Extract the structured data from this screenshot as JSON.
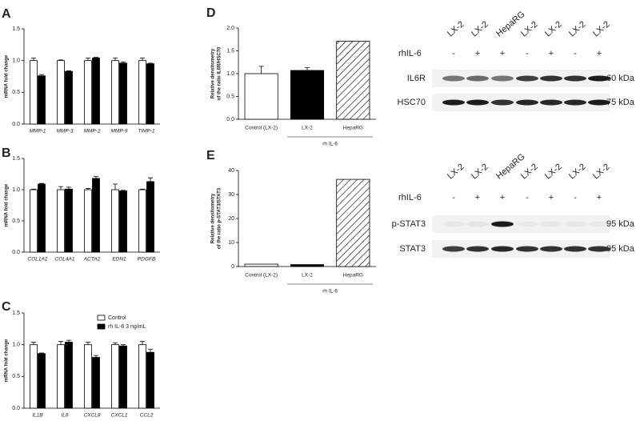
{
  "chart_data": [
    {
      "type": "bar",
      "label": "A",
      "ylabel": [
        "mRNA fold change"
      ],
      "categories": [
        "MMP-1",
        "MMP-3",
        "MMP-2",
        "MMP-9",
        "TIMP-1"
      ],
      "series": [
        {
          "name": "Control",
          "color": "#ffffff",
          "values": [
            1.0,
            1.0,
            1.0,
            1.0,
            1.0
          ],
          "errors": [
            0.04,
            0.01,
            0.04,
            0.04,
            0.04
          ]
        },
        {
          "name": "rh IL-6 3 ng/mL",
          "color": "#000000",
          "values": [
            0.76,
            0.83,
            1.04,
            0.96,
            0.95
          ],
          "errors": [
            0.02,
            0.01,
            0.01,
            0.02,
            0.01
          ]
        }
      ],
      "ylim": [
        0,
        1.5
      ],
      "yticks": [
        {
          "value": 0,
          "label": "0.0"
        },
        0.5,
        {
          "value": 1,
          "label": "1.0"
        },
        1.5
      ]
    },
    {
      "type": "bar",
      "label": "B",
      "ylabel": [
        "mRNA fold change"
      ],
      "categories": [
        "COL1A1",
        "COL4A1",
        "ACTA2",
        "EDN1",
        "PDGFB"
      ],
      "series": [
        {
          "name": "Control",
          "color": "#ffffff",
          "values": [
            1.0,
            1.0,
            1.0,
            1.0,
            1.0
          ],
          "errors": [
            0.01,
            0.05,
            0.02,
            0.09,
            0.01
          ]
        },
        {
          "name": "rh IL-6 3 ng/mL",
          "color": "#000000",
          "values": [
            1.09,
            1.01,
            1.18,
            0.98,
            1.13
          ],
          "errors": [
            0.01,
            0.03,
            0.03,
            0.01,
            0.06
          ]
        }
      ],
      "ylim": [
        0,
        1.5
      ],
      "yticks": [
        {
          "value": 0,
          "label": "0.0"
        },
        0.5,
        {
          "value": 1,
          "label": "1.0"
        },
        1.5
      ]
    },
    {
      "type": "bar",
      "label": "C",
      "ylabel": [
        "mRNA fold change"
      ],
      "legend": "upper right",
      "categories": [
        "IL1B",
        "IL6",
        "CXCL8",
        "CXCL1",
        "CCL2"
      ],
      "series": [
        {
          "name": "Control",
          "color": "#ffffff",
          "values": [
            1.0,
            1.0,
            1.0,
            1.0,
            1.0
          ],
          "errors": [
            0.04,
            0.05,
            0.04,
            0.03,
            0.05
          ]
        },
        {
          "name": "rh IL-6 3 ng/mL",
          "color": "#000000",
          "values": [
            0.86,
            1.04,
            0.8,
            0.98,
            0.88
          ],
          "errors": [
            0.01,
            0.03,
            0.03,
            0.02,
            0.05
          ]
        }
      ],
      "ylim": [
        0,
        1.5
      ],
      "yticks": [
        {
          "value": 0,
          "label": "0.0"
        },
        0.5,
        {
          "value": 1,
          "label": "1.0"
        },
        1.5
      ]
    },
    {
      "type": "bar",
      "label": "D",
      "ylabel": [
        "Relative densitometry",
        "of the ratio IL6R/HSC70"
      ],
      "categories": [
        "Control (LX-2)",
        "LX-2",
        "HepaRG"
      ],
      "group_label": "rh IL-6",
      "values": [
        1.0,
        1.07,
        1.71
      ],
      "errors": [
        0.16,
        0.06,
        null
      ],
      "colors": [
        "#ffffff",
        "#000000",
        "#ffffff"
      ],
      "hatch": [
        false,
        false,
        true
      ],
      "ylim": [
        0,
        2
      ],
      "yticks": [
        {
          "value": 0,
          "label": "0.0"
        },
        0.5,
        {
          "value": 1,
          "label": "1.0"
        },
        1.5,
        {
          "value": 2,
          "label": "2.0"
        }
      ]
    },
    {
      "type": "bar",
      "label": "E",
      "ylabel": [
        "Relative densitometry",
        "of the ratio p-STAT3/STAT3"
      ],
      "categories": [
        "Control (LX-2)",
        "LX-2",
        "HepaRG"
      ],
      "group_label": "rh IL-6",
      "values": [
        1.0,
        0.8,
        36.3
      ],
      "errors": [
        null,
        null,
        null
      ],
      "colors": [
        "#ffffff",
        "#000000",
        "#ffffff"
      ],
      "hatch": [
        false,
        false,
        true
      ],
      "ylim": [
        0,
        40
      ],
      "yticks": [
        0,
        10,
        20,
        30,
        40
      ]
    }
  ],
  "blots": [
    {
      "lanes": [
        "LX-2",
        "LX-2",
        "HepaRG",
        "LX-2",
        "LX-2",
        "LX-2",
        "LX-2"
      ],
      "treatment_label": "rhIL-6",
      "treatment": [
        "-",
        "+",
        "+",
        "-",
        "+",
        "-",
        "+"
      ],
      "rows": [
        {
          "name": "IL6R",
          "size": "60 kDa"
        },
        {
          "name": "HSC70",
          "size": "75 kDa"
        }
      ]
    },
    {
      "lanes": [
        "LX-2",
        "LX-2",
        "HepaRG",
        "LX-2",
        "LX-2",
        "LX-2",
        "LX-2"
      ],
      "treatment_label": "rhIL-6",
      "treatment": [
        "-",
        "+",
        "+",
        "-",
        "+",
        "-",
        "+"
      ],
      "rows": [
        {
          "name": "p-STAT3",
          "size": "95 kDa"
        },
        {
          "name": "STAT3",
          "size": "95 kDa"
        }
      ]
    }
  ]
}
